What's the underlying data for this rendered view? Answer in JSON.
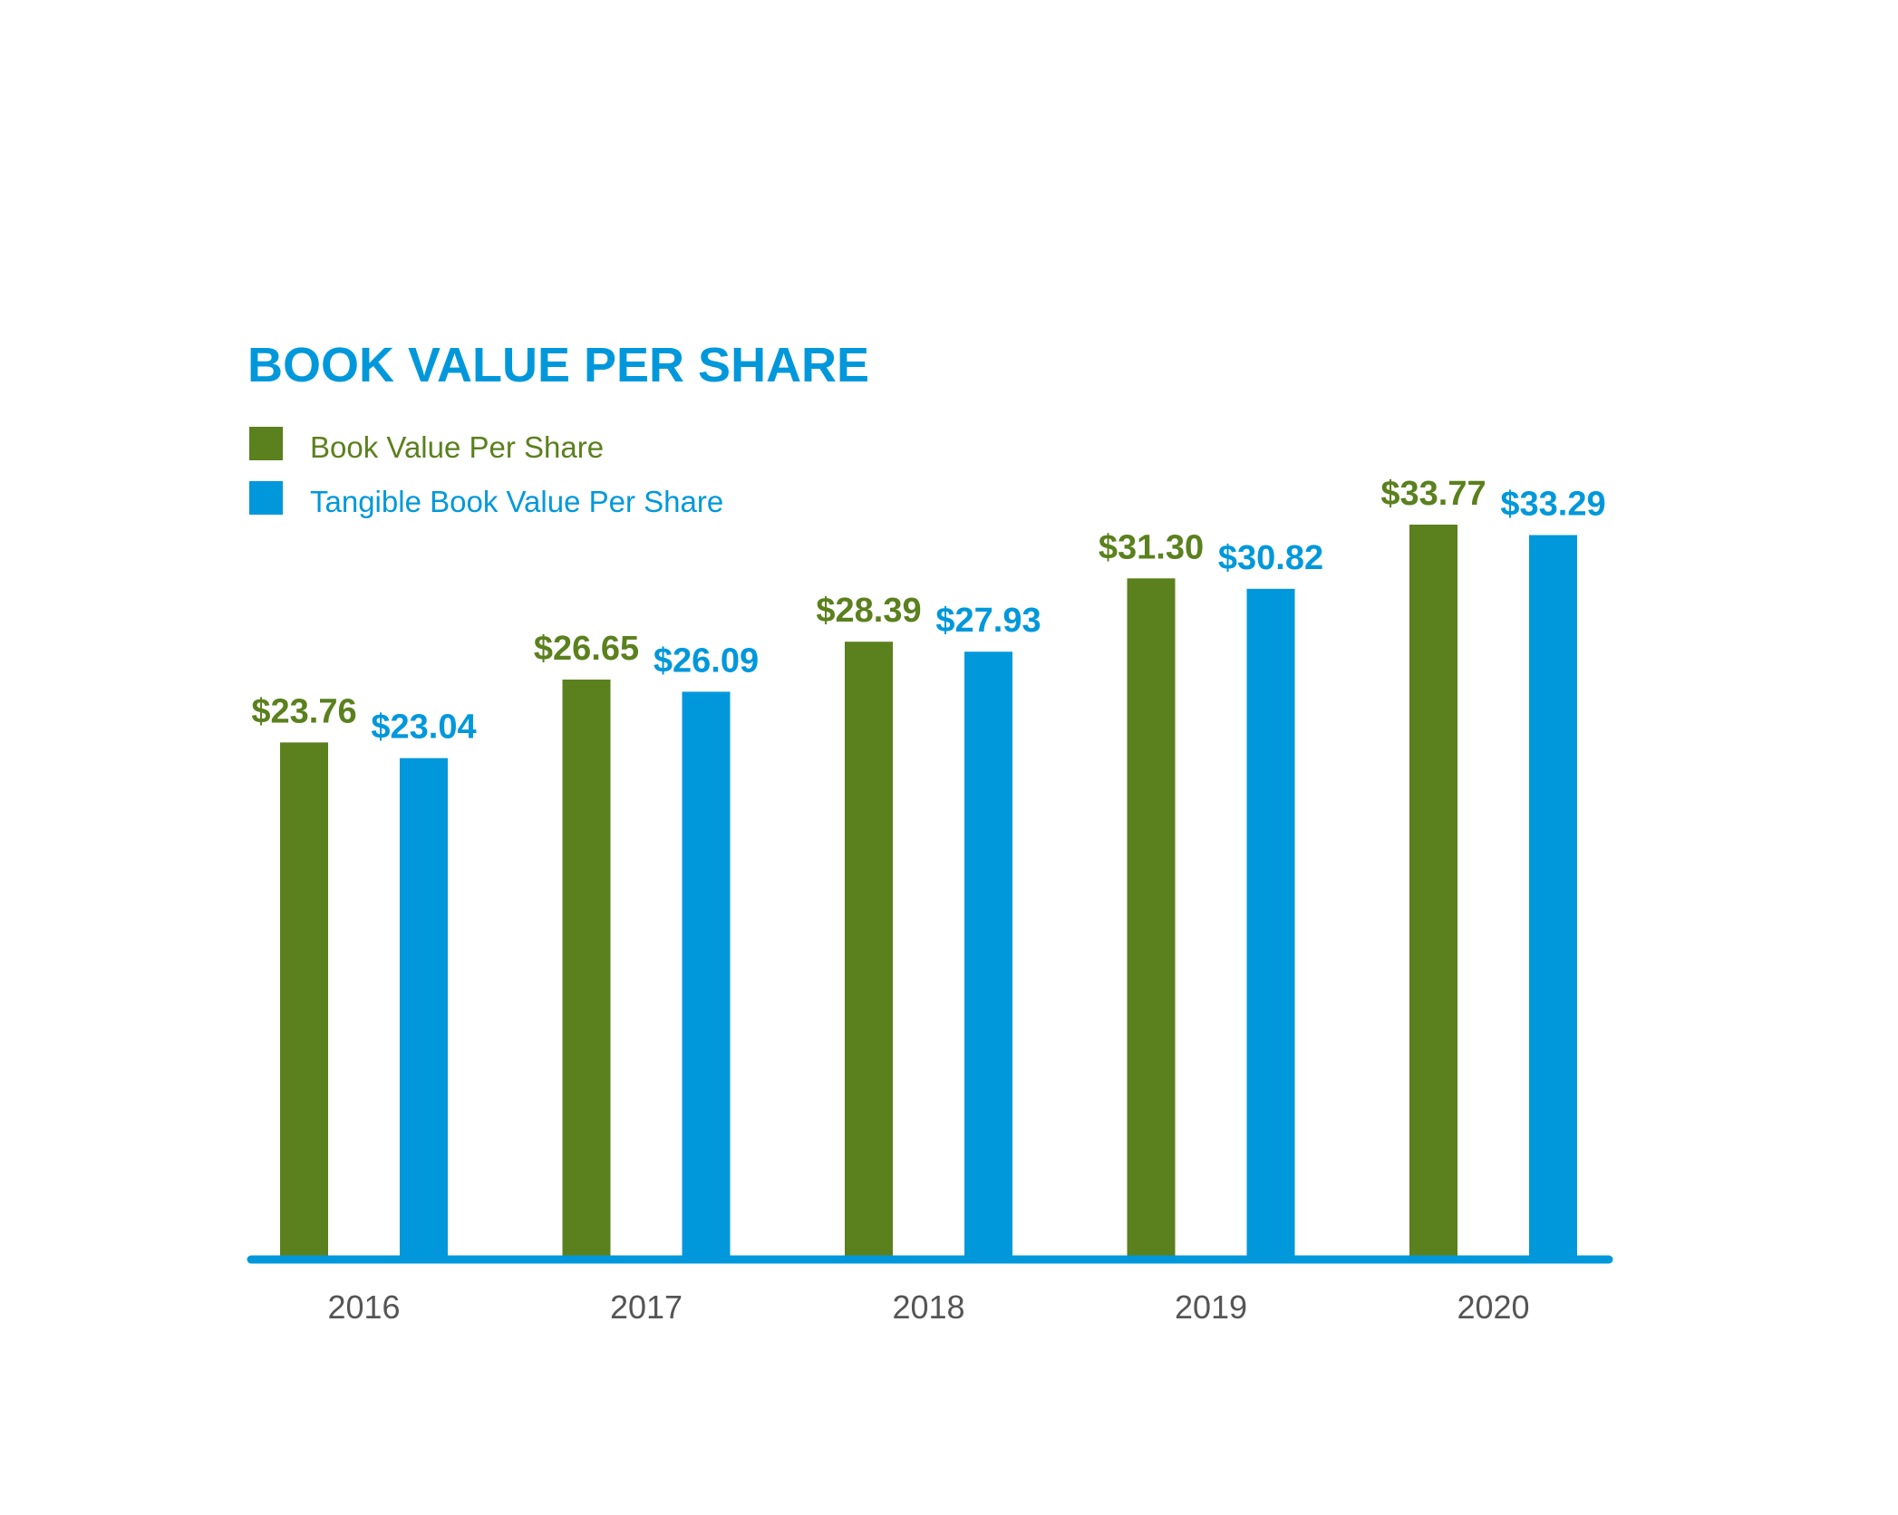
{
  "chart_data": {
    "type": "bar",
    "title": "BOOK VALUE PER SHARE",
    "categories": [
      "2016",
      "2017",
      "2018",
      "2019",
      "2020"
    ],
    "series": [
      {
        "name": "Book Value Per Share",
        "color": "#5b801e",
        "values": [
          23.76,
          26.65,
          28.39,
          31.3,
          33.77
        ],
        "labels": [
          "$23.76",
          "$26.65",
          "$28.39",
          "$31.30",
          "$33.77"
        ]
      },
      {
        "name": "Tangible Book Value Per Share",
        "color": "#0098db",
        "values": [
          23.04,
          26.09,
          27.93,
          30.82,
          33.29
        ],
        "labels": [
          "$23.04",
          "$26.09",
          "$27.93",
          "$30.82",
          "$33.29"
        ]
      }
    ],
    "ylim": [
      0,
      33.77
    ],
    "legend_position": "top-left",
    "grid": false,
    "axis_color": "#0098db",
    "title_color": "#0098db",
    "tick_label_color": "#555555"
  }
}
